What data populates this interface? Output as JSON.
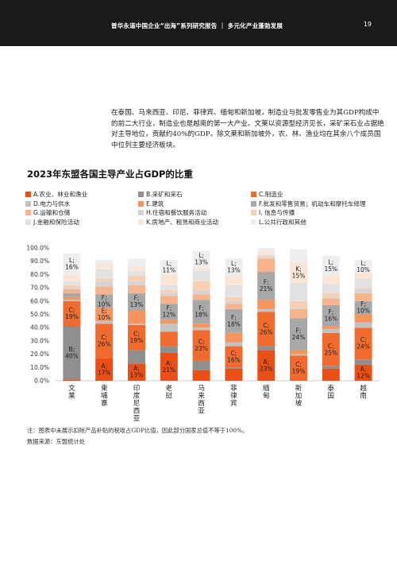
{
  "header": {
    "title": "普华永道中国企业“出海”系列研究报告 ｜ 多元化产业蓬勃发展",
    "page_number": "19"
  },
  "paragraph": "在泰国、马来西亚、印尼、菲律宾、缅甸和新加坡，制造业与批发零售业为其GDP构成中的前二大行业，制造业也是越南的第一大产业。文莱以资源型经济见长，采矿采石业占据绝对主导地位，贡献约40%的GDP。除文莱和新加坡外，农、林、渔业均在其余八个成员国中位列主要经济板块。",
  "footnote": "注：图表中未展示扣除产品补贴的税收占GDP比值，因此部分国家总值不等于100%。",
  "source": "数据来源：东盟统计处",
  "colors": {
    "A": "#ea4f17",
    "B": "#8f8f8f",
    "C": "#f26b2e",
    "D": "#c2c2c2",
    "E": "#f5955d",
    "F": "#a8a8a8",
    "G": "#f7b48c",
    "H": "#d4d4d4",
    "I": "#f9cfb4",
    "J": "#e2e2e2",
    "K": "#fbe5d6",
    "L": "#eeeeee"
  },
  "chart_data": {
    "type": "bar",
    "stacked": true,
    "title": "2023年东盟各国主导产业占GDP的比重",
    "ylim": [
      0,
      100
    ],
    "yticks": [
      "0.0%",
      "10.0%",
      "20.0%",
      "30.0%",
      "40.0%",
      "50.0%",
      "60.0%",
      "70.0%",
      "80.0%",
      "90.0%",
      "100.0%"
    ],
    "legend_position": "top",
    "categories": [
      "文莱",
      "柬埔寨",
      "印度尼西亚",
      "老挝",
      "马来西亚",
      "菲律宾",
      "缅甸",
      "新加坡",
      "泰国",
      "越南"
    ],
    "series": [
      {
        "key": "A",
        "name": "A.农业、林业和渔业",
        "values": [
          1,
          17,
          13,
          21,
          8,
          9,
          23,
          0,
          9,
          12
        ]
      },
      {
        "key": "B",
        "name": "B.采矿和采石",
        "values": [
          40,
          0,
          10,
          5,
          7,
          1,
          3,
          0,
          2,
          4
        ]
      },
      {
        "key": "C",
        "name": "C.制造业",
        "values": [
          19,
          26,
          19,
          11,
          23,
          16,
          26,
          19,
          25,
          24
        ]
      },
      {
        "key": "D",
        "name": "D.电力与供水",
        "values": [
          1,
          2,
          1,
          6,
          2,
          3,
          2,
          1,
          3,
          4
        ]
      },
      {
        "key": "E",
        "name": "E.建筑",
        "values": [
          2,
          10,
          10,
          3,
          3,
          7,
          7,
          3,
          2,
          6
        ]
      },
      {
        "key": "F",
        "name": "F.批发和零售贸易；机动车和摩托车修理",
        "values": [
          3,
          10,
          13,
          12,
          18,
          18,
          21,
          24,
          16,
          10
        ]
      },
      {
        "key": "G",
        "name": "G.运输和仓储",
        "values": [
          3,
          6,
          6,
          6,
          4,
          4,
          10,
          7,
          5,
          6
        ]
      },
      {
        "key": "H",
        "name": "H.住宿和餐饮服务活动",
        "values": [
          1,
          4,
          3,
          2,
          3,
          2,
          1,
          1,
          1,
          3
        ]
      },
      {
        "key": "I",
        "name": "I. 信息与传播",
        "values": [
          2,
          2,
          4,
          2,
          7,
          3,
          1,
          5,
          3,
          1
        ]
      },
      {
        "key": "J",
        "name": "J.金融和保险活动",
        "values": [
          3,
          7,
          4,
          4,
          8,
          9,
          1,
          14,
          7,
          7
        ]
      },
      {
        "key": "K",
        "name": "K.房地产、租赁和商业活动",
        "values": [
          5,
          4,
          3,
          8,
          2,
          7,
          2,
          15,
          6,
          4
        ]
      },
      {
        "key": "L",
        "name": "L.公共行政和其他",
        "values": [
          16,
          3,
          6,
          11,
          13,
          13,
          3,
          10,
          15,
          10
        ]
      }
    ],
    "data_labels": [
      {
        "category": 0,
        "series": "L",
        "text": "L;\n16%"
      },
      {
        "category": 0,
        "series": "C",
        "text": "C;\n19%"
      },
      {
        "category": 0,
        "series": "B",
        "text": "B;\n40%"
      },
      {
        "category": 1,
        "series": "F",
        "text": "F;\n10%"
      },
      {
        "category": 1,
        "series": "E",
        "text": "E;\n10%"
      },
      {
        "category": 1,
        "series": "C",
        "text": "C;\n26%"
      },
      {
        "category": 1,
        "series": "A",
        "text": "A;\n17%"
      },
      {
        "category": 2,
        "series": "F",
        "text": "F;\n13%"
      },
      {
        "category": 2,
        "series": "C",
        "text": "C;\n19%"
      },
      {
        "category": 2,
        "series": "A",
        "text": "A;\n13%"
      },
      {
        "category": 3,
        "series": "L",
        "text": "L;\n11%"
      },
      {
        "category": 3,
        "series": "F",
        "text": "F;\n12%"
      },
      {
        "category": 3,
        "series": "A",
        "text": "A;\n21%"
      },
      {
        "category": 4,
        "series": "L",
        "text": "L;\n13%"
      },
      {
        "category": 4,
        "series": "F",
        "text": "F;\n18%"
      },
      {
        "category": 4,
        "series": "C",
        "text": "C;\n23%"
      },
      {
        "category": 5,
        "series": "L",
        "text": "L;\n13%"
      },
      {
        "category": 5,
        "series": "F",
        "text": "F;\n18%"
      },
      {
        "category": 5,
        "series": "C",
        "text": "C;\n16%"
      },
      {
        "category": 6,
        "series": "F",
        "text": "F;\n21%"
      },
      {
        "category": 6,
        "series": "C",
        "text": "C;\n26%"
      },
      {
        "category": 6,
        "series": "A",
        "text": "A;\n23%"
      },
      {
        "category": 7,
        "series": "K",
        "text": "K;\n15%"
      },
      {
        "category": 7,
        "series": "F",
        "text": "F;\n24%"
      },
      {
        "category": 7,
        "series": "C",
        "text": "C;\n19%"
      },
      {
        "category": 8,
        "series": "L",
        "text": "L;\n15%"
      },
      {
        "category": 8,
        "series": "F",
        "text": "F;\n16%"
      },
      {
        "category": 8,
        "series": "C",
        "text": "C;\n25%"
      },
      {
        "category": 9,
        "series": "L",
        "text": "L;\n10%"
      },
      {
        "category": 9,
        "series": "F",
        "text": "F;\n10%"
      },
      {
        "category": 9,
        "series": "C",
        "text": "C;\n24%"
      },
      {
        "category": 9,
        "series": "A",
        "text": "A;\n12%"
      }
    ]
  }
}
